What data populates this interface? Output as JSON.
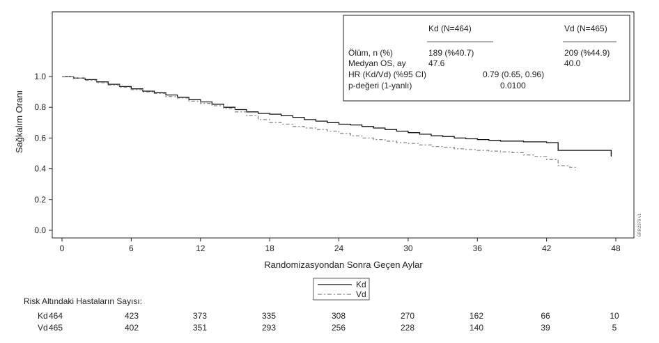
{
  "chart_data": {
    "type": "line",
    "subtype": "kaplan-meier",
    "title": "",
    "xlabel": "Randomizasyondan Sonra Geçen Aylar",
    "ylabel": "Sağkalım Oranı",
    "xlim": [
      0,
      48
    ],
    "ylim": [
      0,
      1.1
    ],
    "xticks": [
      0,
      6,
      12,
      18,
      24,
      30,
      36,
      42,
      48
    ],
    "yticks": [
      "0.0",
      "0.2",
      "0.4",
      "0.6",
      "0.8",
      "1.0"
    ],
    "grid": false,
    "legend_position": "bottom-center",
    "series": [
      {
        "name": "Kd",
        "color": "#111111",
        "style": "solid",
        "points": [
          [
            0,
            1.0
          ],
          [
            1,
            0.99
          ],
          [
            2,
            0.98
          ],
          [
            3,
            0.965
          ],
          [
            4,
            0.95
          ],
          [
            5,
            0.935
          ],
          [
            6,
            0.92
          ],
          [
            7,
            0.905
          ],
          [
            8,
            0.895
          ],
          [
            9,
            0.88
          ],
          [
            10,
            0.865
          ],
          [
            11,
            0.85
          ],
          [
            12,
            0.835
          ],
          [
            13,
            0.82
          ],
          [
            14,
            0.8
          ],
          [
            15,
            0.785
          ],
          [
            16,
            0.77
          ],
          [
            17,
            0.76
          ],
          [
            18,
            0.755
          ],
          [
            19,
            0.745
          ],
          [
            20,
            0.735
          ],
          [
            21,
            0.72
          ],
          [
            22,
            0.71
          ],
          [
            23,
            0.7
          ],
          [
            24,
            0.69
          ],
          [
            25,
            0.685
          ],
          [
            26,
            0.675
          ],
          [
            27,
            0.665
          ],
          [
            28,
            0.655
          ],
          [
            29,
            0.645
          ],
          [
            30,
            0.635
          ],
          [
            31,
            0.625
          ],
          [
            32,
            0.615
          ],
          [
            33,
            0.61
          ],
          [
            34,
            0.6
          ],
          [
            35,
            0.595
          ],
          [
            36,
            0.59
          ],
          [
            37,
            0.585
          ],
          [
            38,
            0.58
          ],
          [
            39,
            0.58
          ],
          [
            40,
            0.575
          ],
          [
            41,
            0.575
          ],
          [
            42,
            0.57
          ],
          [
            43,
            0.52
          ],
          [
            44,
            0.52
          ],
          [
            47.6,
            0.52
          ],
          [
            47.6,
            0.48
          ]
        ]
      },
      {
        "name": "Vd",
        "color": "#888888",
        "style": "dashed",
        "points": [
          [
            0,
            1.0
          ],
          [
            1,
            0.99
          ],
          [
            2,
            0.975
          ],
          [
            3,
            0.96
          ],
          [
            4,
            0.945
          ],
          [
            5,
            0.93
          ],
          [
            6,
            0.915
          ],
          [
            7,
            0.9
          ],
          [
            8,
            0.89
          ],
          [
            9,
            0.87
          ],
          [
            10,
            0.86
          ],
          [
            11,
            0.84
          ],
          [
            12,
            0.825
          ],
          [
            13,
            0.81
          ],
          [
            14,
            0.79
          ],
          [
            15,
            0.77
          ],
          [
            16,
            0.745
          ],
          [
            17,
            0.72
          ],
          [
            18,
            0.7
          ],
          [
            19,
            0.69
          ],
          [
            20,
            0.675
          ],
          [
            21,
            0.665
          ],
          [
            22,
            0.655
          ],
          [
            23,
            0.645
          ],
          [
            24,
            0.63
          ],
          [
            25,
            0.615
          ],
          [
            26,
            0.6
          ],
          [
            27,
            0.59
          ],
          [
            28,
            0.58
          ],
          [
            29,
            0.57
          ],
          [
            30,
            0.565
          ],
          [
            31,
            0.555
          ],
          [
            32,
            0.545
          ],
          [
            33,
            0.54
          ],
          [
            34,
            0.53
          ],
          [
            35,
            0.525
          ],
          [
            36,
            0.52
          ],
          [
            37,
            0.515
          ],
          [
            38,
            0.51
          ],
          [
            39,
            0.505
          ],
          [
            40,
            0.49
          ],
          [
            41,
            0.48
          ],
          [
            42,
            0.46
          ],
          [
            43,
            0.42
          ],
          [
            44,
            0.41
          ],
          [
            44.5,
            0.39
          ]
        ]
      }
    ],
    "legend": [
      "Kd",
      "Vd"
    ],
    "stats_box": {
      "headers": [
        "Kd (N=464)",
        "Vd (N=465)"
      ],
      "rows": [
        {
          "label": "Ölüm, n (%)",
          "kd": "189 (%40.7)",
          "vd": "209 (%44.9)"
        },
        {
          "label": "Medyan OS, ay",
          "kd": "47.6",
          "vd": "40.0"
        },
        {
          "label": "HR (Kd/Vd) (%95 CI)",
          "shared": "0.79 (0.65, 0.96)"
        },
        {
          "label": "p-değeri (1-yanlı)",
          "shared": "0.0100"
        }
      ]
    },
    "risk_table": {
      "title": "Risk Altındaki Hastaların Sayısı:",
      "rows": [
        {
          "group": "Kd",
          "values": [
            "464",
            "423",
            "373",
            "335",
            "308",
            "270",
            "162",
            "66",
            "10"
          ]
        },
        {
          "group": "Vd",
          "values": [
            "465",
            "402",
            "351",
            "293",
            "256",
            "228",
            "140",
            "39",
            "5"
          ]
        }
      ]
    },
    "side_code": "6RR2979 v1"
  }
}
